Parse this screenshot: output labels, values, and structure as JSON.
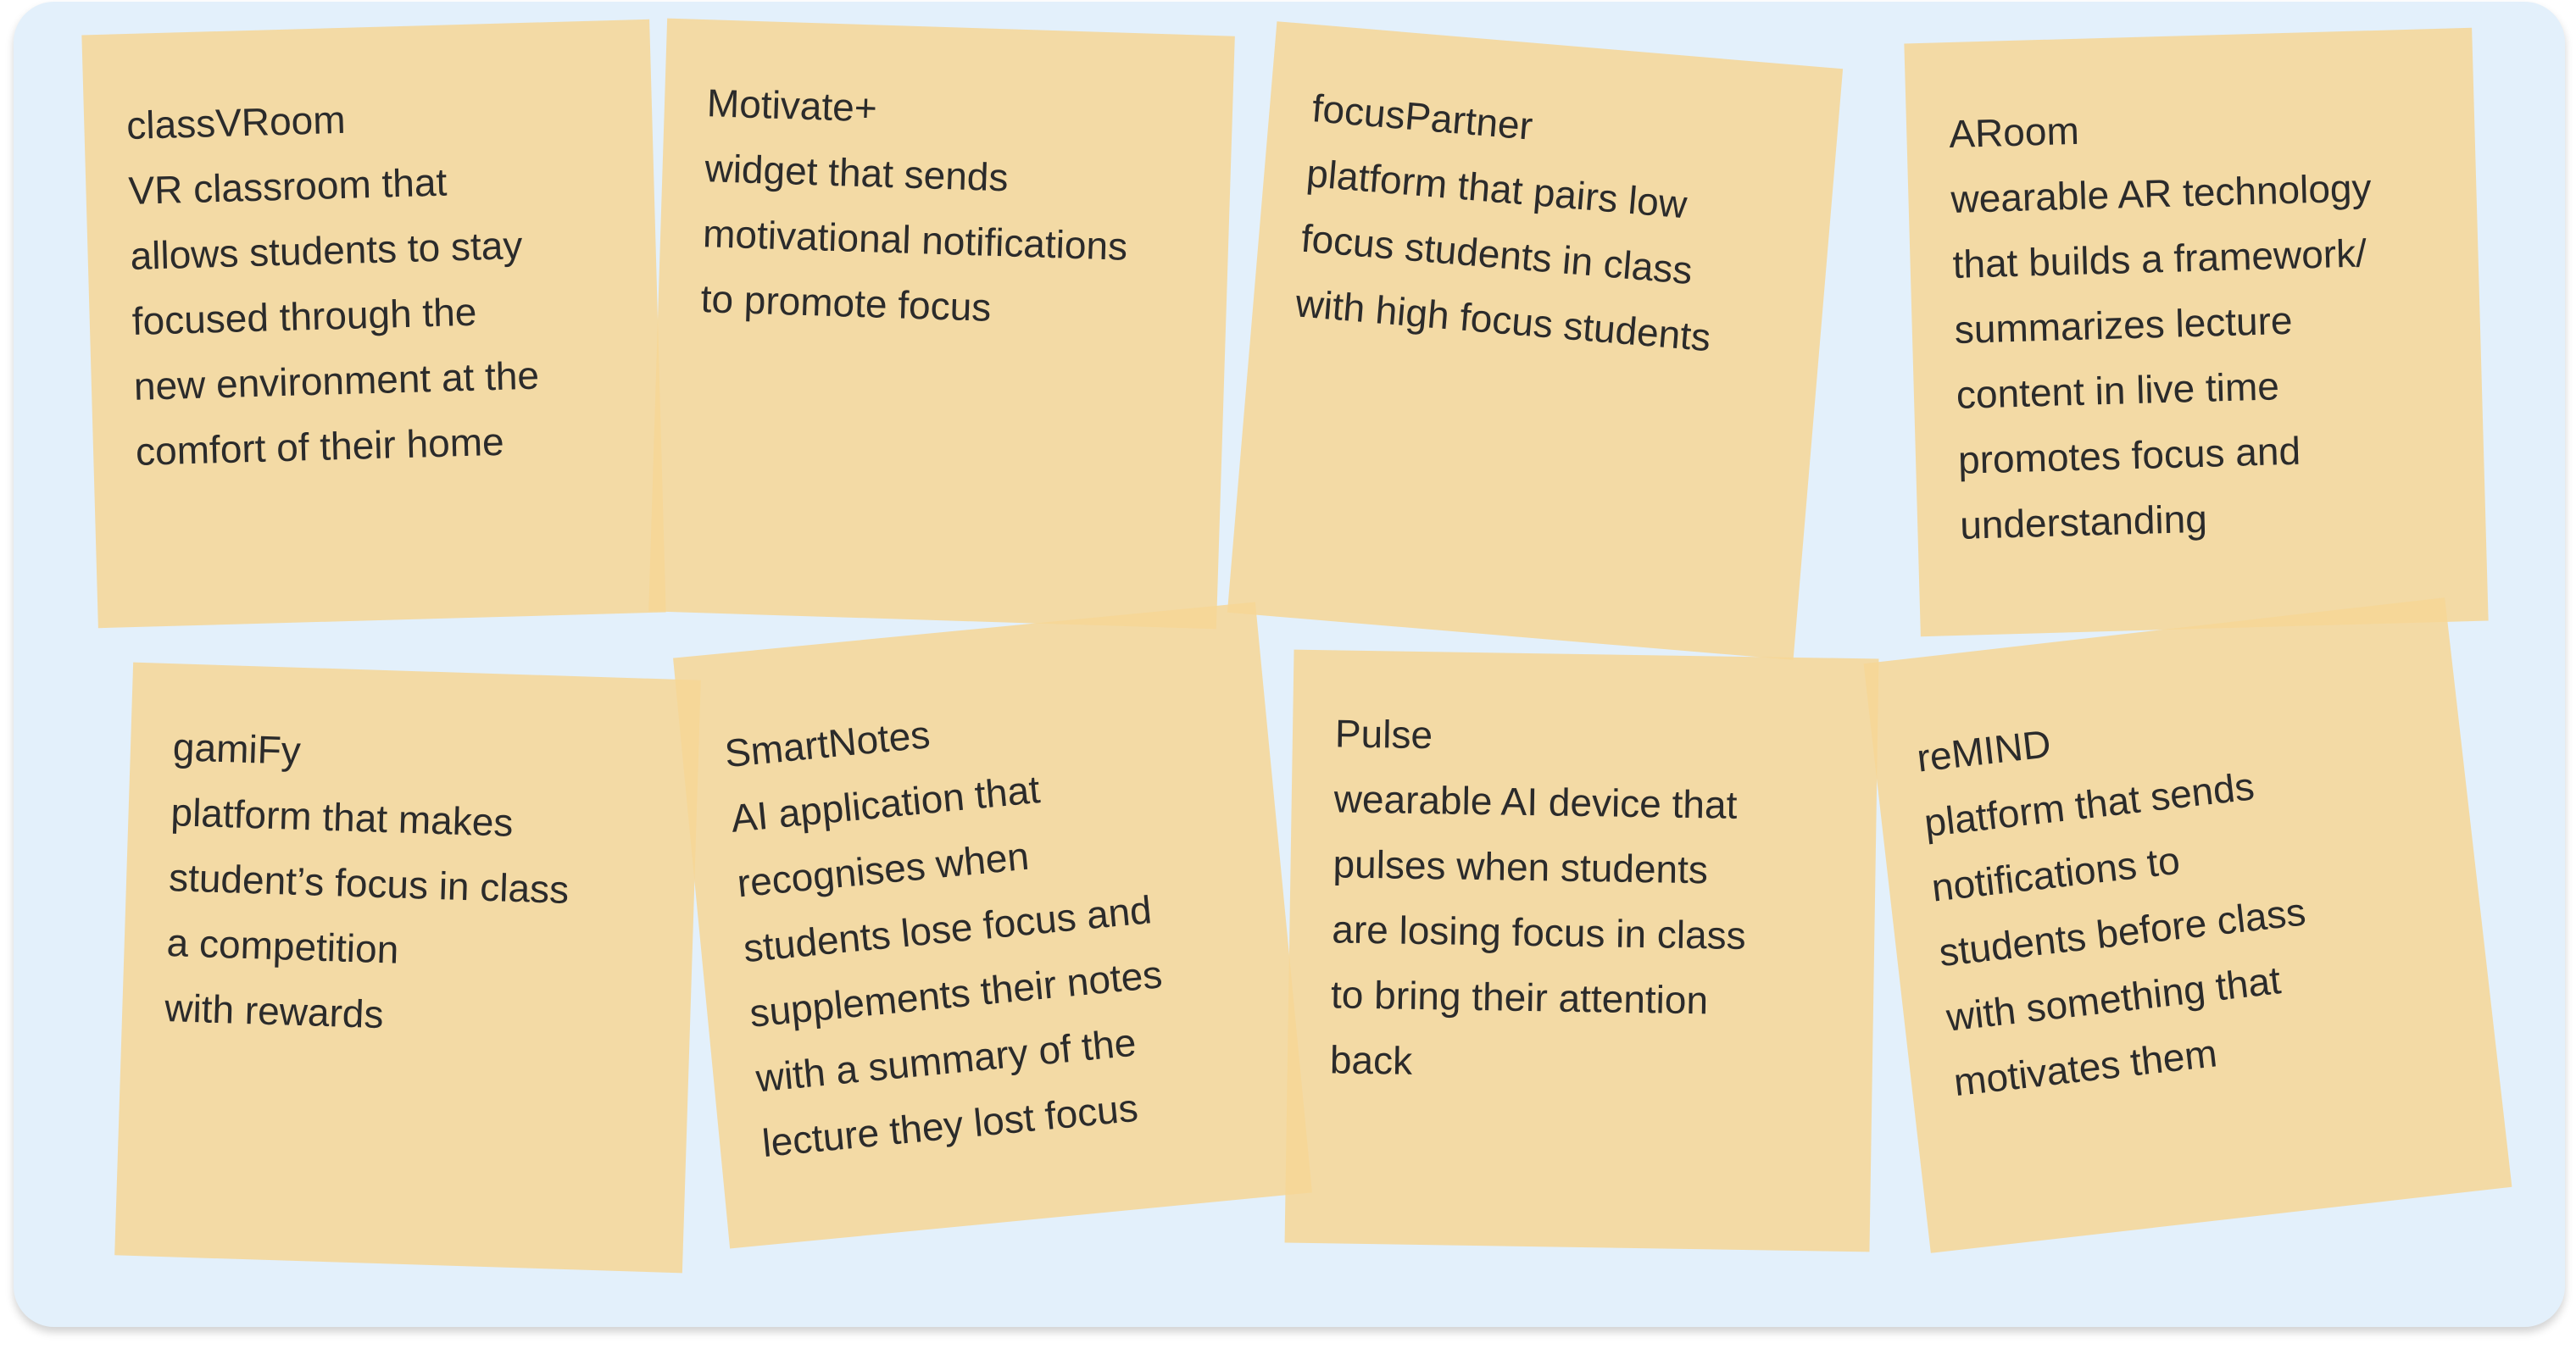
{
  "board": {
    "notes": [
      {
        "title": "classVRoom",
        "body": "VR classroom that\nallows students to stay\nfocused through the\nnew environment at the\ncomfort of their home"
      },
      {
        "title": "Motivate+",
        "body": "widget that sends\nmotivational notifications\nto promote focus"
      },
      {
        "title": "focusPartner",
        "body": "platform that pairs low\nfocus students in class\nwith high focus students"
      },
      {
        "title": "ARoom",
        "body": "wearable AR technology\nthat builds a framework/\nsummarizes lecture\ncontent in live time\npromotes focus and\nunderstanding"
      },
      {
        "title": "gamiFy",
        "body": "platform that makes\nstudent’s focus in class\na competition\nwith rewards"
      },
      {
        "title": "SmartNotes",
        "body": "AI application that\nrecognises when\nstudents lose focus and\nsupplements their notes\nwith a summary of the\nlecture they lost focus"
      },
      {
        "title": "Pulse",
        "body": "wearable AI device that\npulses when students\nare losing focus in class\nto bring their attention\nback"
      },
      {
        "title": "reMIND",
        "body": "platform that sends\nnotifications to\nstudents before class\nwith something that\nmotivates them"
      }
    ]
  }
}
